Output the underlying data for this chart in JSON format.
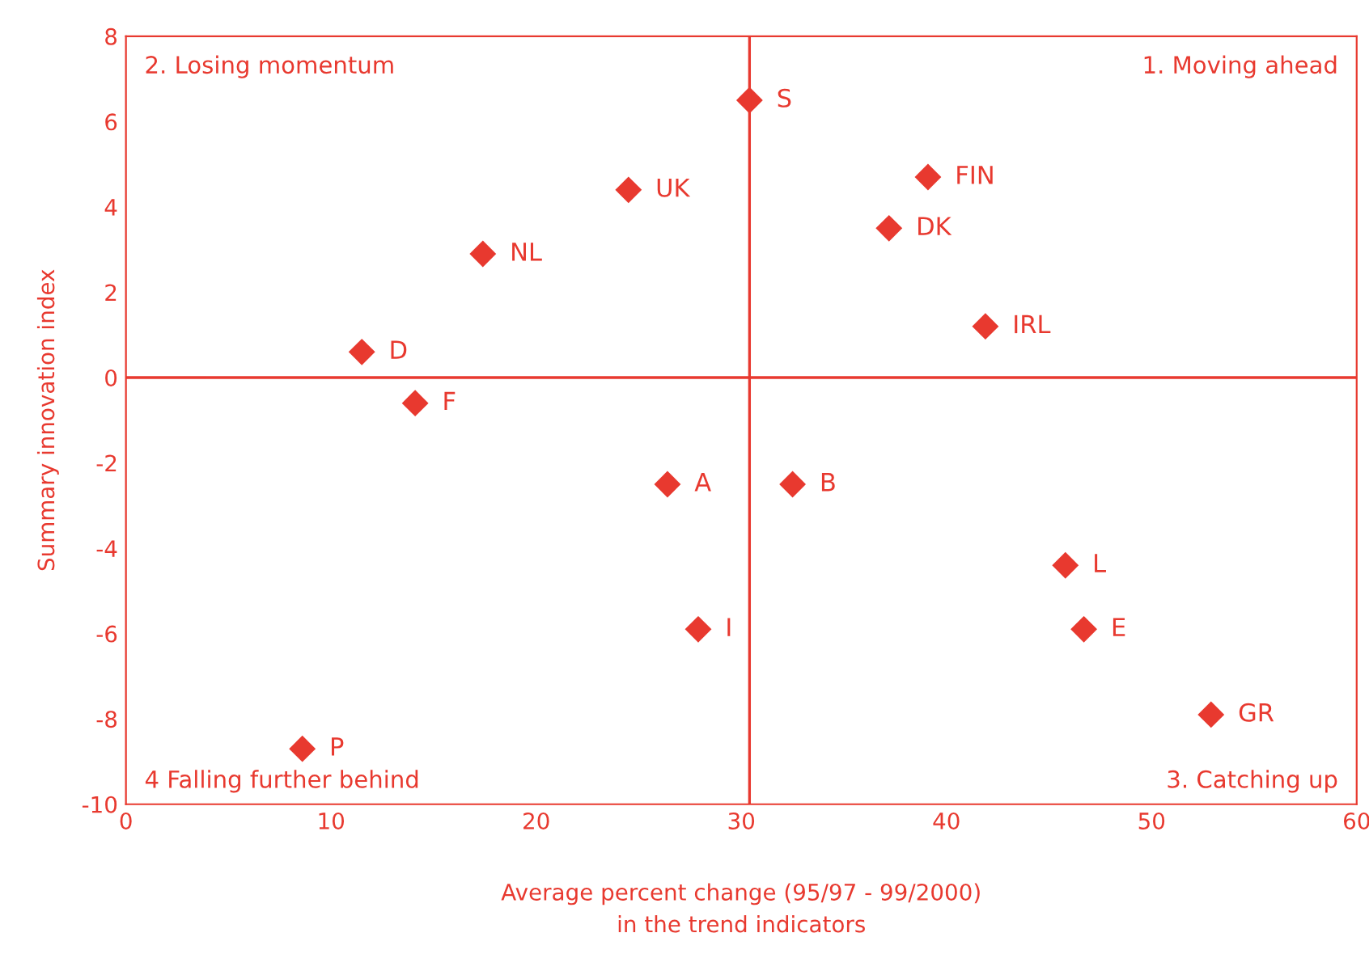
{
  "chart_data": {
    "type": "scatter",
    "xlabel": "Average percent change (95/97 - 99/2000)\nin the trend indicators",
    "ylabel": "Summary innovation index",
    "x": [
      30.4,
      24.5,
      39.1,
      37.2,
      17.4,
      11.5,
      41.9,
      14.1,
      26.4,
      32.5,
      45.8,
      27.9,
      46.7,
      52.9,
      8.6
    ],
    "series": [
      {
        "color": "#e8392f",
        "values": [
          6.5,
          4.4,
          4.7,
          3.5,
          2.9,
          0.6,
          1.2,
          -0.6,
          -2.5,
          -2.5,
          -4.4,
          -5.9,
          -5.9,
          -7.9,
          -8.7
        ]
      }
    ],
    "marker": "diamond",
    "grid": false,
    "legend": false,
    "xlim": [
      0,
      60
    ],
    "xticks": [
      0,
      10,
      20,
      30,
      40,
      50,
      60
    ],
    "ylim": [
      -10,
      8
    ],
    "yticks": [
      {
        "value": -10,
        "label": "-10"
      },
      {
        "value": -8,
        "label": "-8"
      },
      {
        "value": -6,
        "label": "-6"
      },
      {
        "value": -4,
        "label": "-4"
      },
      {
        "value": -2,
        "label": "-2"
      },
      0,
      2,
      4,
      6,
      8
    ],
    "ref_lines": [
      {
        "axis": "x",
        "value": 30.4,
        "color": "#e8392f"
      },
      {
        "axis": "y",
        "value": 0,
        "color": "#e8392f"
      }
    ],
    "annotations": [
      "2. Losing momentum",
      "1. Moving ahead",
      "4 Falling further behind",
      "3. Catching up",
      {
        "text": "S",
        "x": 30.4,
        "y": 6.5
      },
      {
        "text": "UK",
        "x": 24.5,
        "y": 4.4
      },
      {
        "text": "FIN",
        "x": 39.1,
        "y": 4.7
      },
      {
        "text": "DK",
        "x": 37.2,
        "y": 3.5
      },
      {
        "text": "NL",
        "x": 17.4,
        "y": 2.9
      },
      {
        "text": "D",
        "x": 11.5,
        "y": 0.6
      },
      {
        "text": "IRL",
        "x": 41.9,
        "y": 1.2
      },
      {
        "text": "F",
        "x": 14.1,
        "y": -0.6
      },
      {
        "text": "A",
        "x": 26.4,
        "y": -2.5
      },
      {
        "text": "B",
        "x": 32.5,
        "y": -2.5
      },
      {
        "text": "L",
        "x": 45.8,
        "y": -4.4
      },
      {
        "text": "I",
        "x": 27.9,
        "y": -5.9
      },
      {
        "text": "E",
        "x": 46.7,
        "y": -5.9
      },
      {
        "text": "GR",
        "x": 52.9,
        "y": -7.9
      },
      {
        "text": "P",
        "x": 8.6,
        "y": -8.7
      }
    ]
  }
}
